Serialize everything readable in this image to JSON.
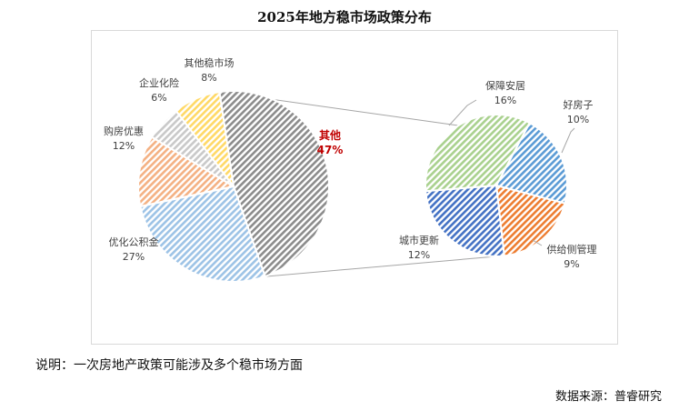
{
  "title": "2025年地方稳市场政策分布",
  "note": "说明：一次房地产政策可能涉及多个稳市场方面",
  "source": "数据来源：普睿研究",
  "chart_data": [
    {
      "type": "pie",
      "title": "",
      "slices": [
        {
          "name": "其他",
          "value": 47,
          "label": "47%",
          "color": "#8c8c8c",
          "highlight": true
        },
        {
          "name": "优化公积金",
          "value": 27,
          "label": "27%",
          "color": "#9dc3e6"
        },
        {
          "name": "购房优惠",
          "value": 12,
          "label": "12%",
          "color": "#f4b183"
        },
        {
          "name": "企业化险",
          "value": 6,
          "label": "6%",
          "color": "#c9c9c9"
        },
        {
          "name": "其他稳市场",
          "value": 8,
          "label": "8%",
          "color": "#ffd966"
        }
      ]
    },
    {
      "type": "pie",
      "title": "",
      "breakdown_of": "其他",
      "slices": [
        {
          "name": "好房子",
          "value": 10,
          "label": "10%",
          "color": "#5b9bd5"
        },
        {
          "name": "供给侧管理",
          "value": 9,
          "label": "9%",
          "color": "#ed7d31"
        },
        {
          "name": "城市更新",
          "value": 12,
          "label": "12%",
          "color": "#4472c4"
        },
        {
          "name": "保障安居",
          "value": 16,
          "label": "16%",
          "color": "#a9d18e"
        }
      ]
    }
  ]
}
